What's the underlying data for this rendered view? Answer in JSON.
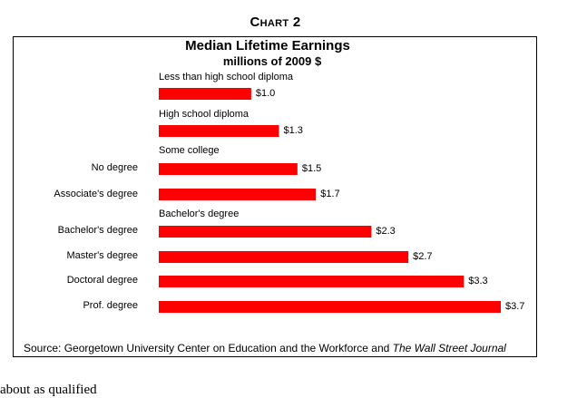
{
  "page": {
    "chart_label": "Chart 2",
    "source_prefix": "Source: Georgetown University Center on Education and the Workforce and ",
    "source_journal": "The Wall Street Journal",
    "trailing_text": "about as qualified"
  },
  "colors": {
    "bar": "#ff0000",
    "frame": "#000000",
    "text": "#000000"
  },
  "chart_data": {
    "type": "bar",
    "orientation": "horizontal",
    "title": "Median Lifetime Earnings",
    "subtitle": "millions of 2009 $",
    "categories": [
      "Less than high school diploma",
      "High school diploma",
      "Some college",
      "No degree",
      "Associate's degree",
      "Bachelor's degree",
      "Bachelor's degree",
      "Master's degree",
      "Doctoral degree",
      "Prof. degree"
    ],
    "values": [
      1.0,
      1.3,
      null,
      1.5,
      1.7,
      null,
      2.3,
      2.7,
      3.3,
      3.7
    ],
    "data_labels": [
      "$1.0",
      "$1.3",
      "",
      "$1.5",
      "$1.7",
      "",
      "$2.3",
      "$2.7",
      "$3.3",
      "$3.7"
    ],
    "label_position": [
      "above",
      "above",
      "above",
      "left",
      "left",
      "above",
      "left",
      "left",
      "left",
      "left"
    ],
    "xlim": [
      0,
      3.7
    ],
    "grid": false,
    "legend": "none"
  }
}
